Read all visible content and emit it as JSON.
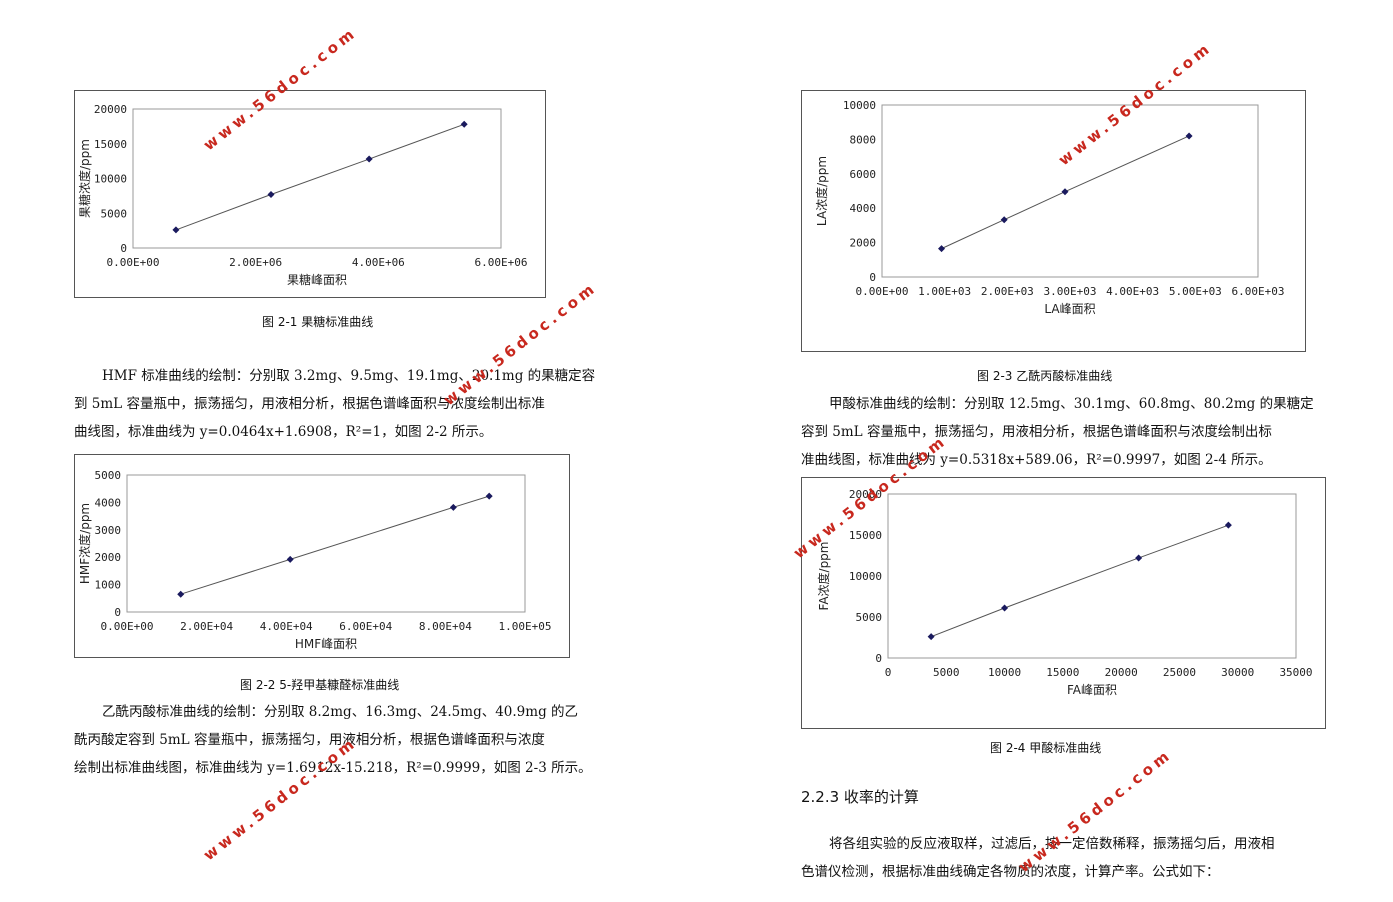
{
  "left": {
    "fig1": {
      "caption": "图 2-1  果糖标准曲线",
      "chart": {
        "type": "scatter",
        "xlabel": "果糖峰面积",
        "ylabel": "果糖浓度/ppm",
        "xlim": [
          0,
          6000000
        ],
        "ylim": [
          0,
          20000
        ],
        "xticks": [
          "0.00E+00",
          "2.00E+06",
          "4.00E+06",
          "6.00E+06"
        ],
        "yticks": [
          "0",
          "5000",
          "10000",
          "15000",
          "20000"
        ],
        "x": [
          700000,
          2250000,
          3850000,
          5400000
        ],
        "y": [
          2600,
          7700,
          12800,
          17800
        ]
      }
    },
    "para1": [
      "HMF 标准曲线的绘制：分别取 3.2mg、9.5mg、19.1mg、20.1mg 的果糖定容",
      "到 5mL 容量瓶中，振荡摇匀，用液相分析，根据色谱峰面积与浓度绘制出标准",
      "曲线图，标准曲线为 y=0.0464x+1.6908，R²=1，如图 2-2 所示。"
    ],
    "fig2": {
      "caption": "图 2-2  5-羟甲基糠醛标准曲线",
      "chart": {
        "type": "scatter",
        "xlabel": "HMF峰面积",
        "ylabel": "HMF浓度/ppm",
        "xlim": [
          0,
          100000
        ],
        "ylim": [
          0,
          5000
        ],
        "xticks": [
          "0.00E+00",
          "2.00E+04",
          "4.00E+04",
          "6.00E+04",
          "8.00E+04",
          "1.00E+05"
        ],
        "yticks": [
          "0",
          "1000",
          "2000",
          "3000",
          "4000",
          "5000"
        ],
        "x": [
          13500,
          41000,
          82000,
          91000
        ],
        "y": [
          650,
          1920,
          3820,
          4230
        ]
      }
    },
    "para2": [
      "乙酰丙酸标准曲线的绘制：分别取  8.2mg、16.3mg、24.5mg、40.9mg  的乙",
      "酰丙酸定容到  5mL 容量瓶中，振荡摇匀，用液相分析，根据色谱峰面积与浓度",
      "绘制出标准曲线图，标准曲线为  y=1.6912x-15.218，R²=0.9999，如图 2-3 所示。"
    ]
  },
  "right": {
    "fig3": {
      "caption": "图 2-3  乙酰丙酸标准曲线",
      "chart": {
        "type": "scatter",
        "xlabel": "LA峰面积",
        "ylabel": "LA浓度/ppm",
        "xlim": [
          0,
          6000
        ],
        "ylim": [
          0,
          10000
        ],
        "xticks": [
          "0.00E+00",
          "1.00E+03",
          "2.00E+03",
          "3.00E+03",
          "4.00E+03",
          "5.00E+03",
          "6.00E+03"
        ],
        "yticks": [
          "0",
          "2000",
          "4000",
          "6000",
          "8000",
          "10000"
        ],
        "x": [
          950,
          1950,
          2920,
          4900
        ],
        "y": [
          1650,
          3330,
          4960,
          8200
        ]
      }
    },
    "para1": [
      "甲酸标准曲线的绘制：分别取 12.5mg、30.1mg、60.8mg、80.2mg 的果糖定",
      "容到  5mL 容量瓶中，振荡摇匀，用液相分析，根据色谱峰面积与浓度绘制出标",
      "准曲线图，标准曲线为 y=0.5318x+589.06，R²=0.9997，如图 2-4 所示。"
    ],
    "fig4": {
      "caption": "图 2-4  甲酸标准曲线",
      "chart": {
        "type": "scatter",
        "xlabel": "FA峰面积",
        "ylabel": "FA浓度/ppm",
        "xlim": [
          0,
          35000
        ],
        "ylim": [
          0,
          20000
        ],
        "xticks": [
          "0",
          "5000",
          "10000",
          "15000",
          "20000",
          "25000",
          "30000",
          "35000"
        ],
        "yticks": [
          "0",
          "5000",
          "10000",
          "15000",
          "20000"
        ],
        "x": [
          3700,
          10000,
          21500,
          29200
        ],
        "y": [
          2600,
          6100,
          12200,
          16200
        ]
      }
    },
    "heading": "2.2.3  收率的计算",
    "para2": [
      "将各组实验的反应液取样，过滤后，按一定倍数稀释，振荡摇匀后，用液相",
      "色谱仪检测，根据标准曲线确定各物质的浓度，计算产率。公式如下："
    ]
  },
  "watermark": "www.56doc.com"
}
